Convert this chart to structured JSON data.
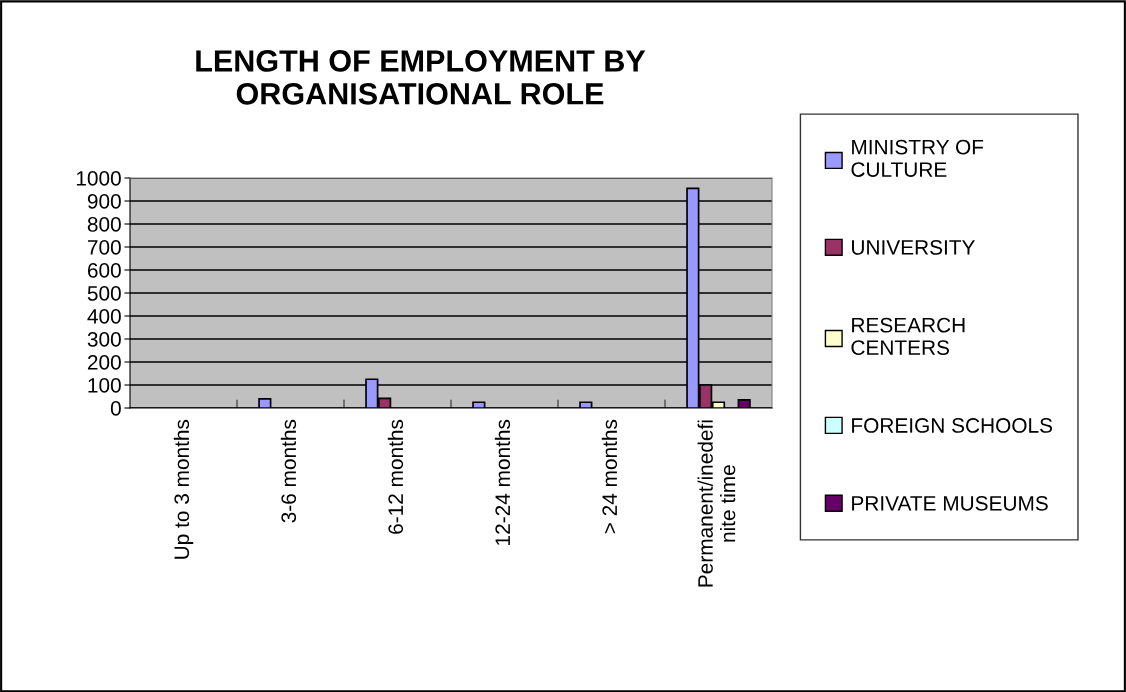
{
  "chart_data": {
    "type": "bar",
    "title": "LENGTH OF EMPLOYMENT BY ORGANISATIONAL ROLE",
    "categories": [
      "Up to 3 months",
      "3-6 months",
      "6-12 months",
      "12-24 months",
      "> 24 months",
      "Permanent/inedefi nite time"
    ],
    "series": [
      {
        "name": "MINISTRY OF CULTURE",
        "color": "#9999ff",
        "values": [
          0,
          40,
          125,
          25,
          25,
          955
        ]
      },
      {
        "name": "UNIVERSITY",
        "color": "#993366",
        "values": [
          0,
          0,
          42,
          0,
          0,
          100
        ]
      },
      {
        "name": "RESEARCH CENTERS",
        "color": "#ffffcc",
        "values": [
          0,
          0,
          0,
          0,
          0,
          25
        ]
      },
      {
        "name": "FOREIGN SCHOOLS",
        "color": "#ccffff",
        "values": [
          0,
          0,
          0,
          0,
          0,
          0
        ]
      },
      {
        "name": "PRIVATE MUSEUMS",
        "color": "#660066",
        "values": [
          0,
          0,
          0,
          0,
          0,
          35
        ]
      }
    ],
    "ylim": [
      0,
      1000
    ],
    "yticks": [
      0,
      100,
      200,
      300,
      400,
      500,
      600,
      700,
      800,
      900,
      1000
    ],
    "grid": "y",
    "legend": "right"
  }
}
